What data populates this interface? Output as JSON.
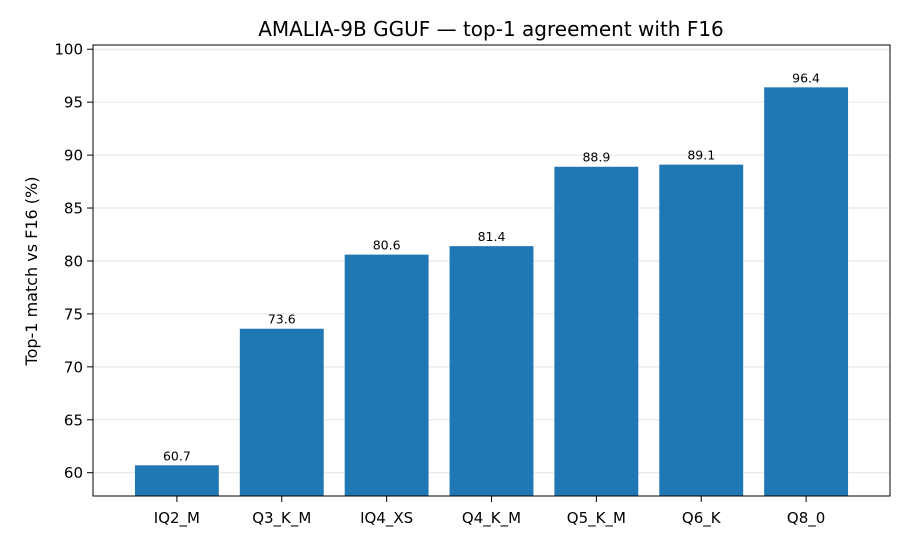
{
  "chart_data": {
    "type": "bar",
    "title": "AMALIA-9B GGUF — top-1 agreement with F16",
    "xlabel": "",
    "ylabel": "Top-1 match vs F16 (%)",
    "categories": [
      "IQ2_M",
      "Q3_K_M",
      "IQ4_XS",
      "Q4_K_M",
      "Q5_K_M",
      "Q6_K",
      "Q8_0"
    ],
    "values": [
      60.7,
      73.6,
      80.6,
      81.4,
      88.9,
      89.1,
      96.4
    ],
    "data_labels": [
      "60.7",
      "73.6",
      "80.6",
      "81.4",
      "88.9",
      "89.1",
      "96.4"
    ],
    "ylim": [
      57.8,
      100.4
    ],
    "yticks": [
      60,
      65,
      70,
      75,
      80,
      85,
      90,
      95,
      100
    ],
    "grid": "y",
    "bar_color": "#1f77b4",
    "legend": "none"
  }
}
